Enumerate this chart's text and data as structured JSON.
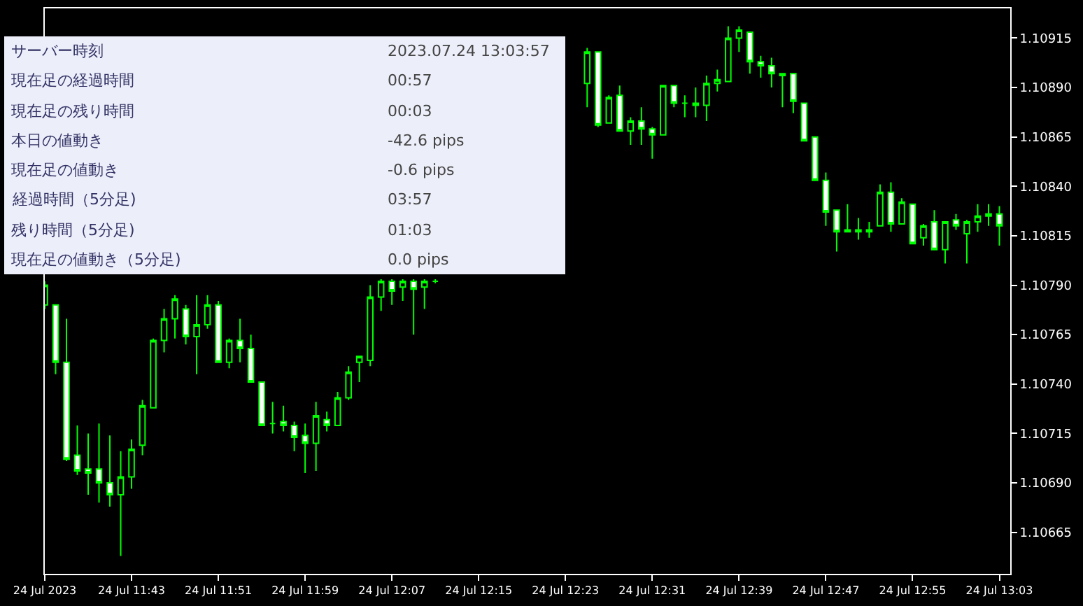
{
  "chart_data": [
    {
      "type": "candlestick",
      "color": "#00ff00",
      "x": [
        "2023-07-24T11:35",
        "2023-07-24T11:36",
        "2023-07-24T11:37",
        "2023-07-24T11:38",
        "2023-07-24T11:39",
        "2023-07-24T11:40",
        "2023-07-24T11:41",
        "2023-07-24T11:42",
        "2023-07-24T11:43",
        "2023-07-24T11:44",
        "2023-07-24T11:45",
        "2023-07-24T11:46",
        "2023-07-24T11:47",
        "2023-07-24T11:48",
        "2023-07-24T11:49",
        "2023-07-24T11:50",
        "2023-07-24T11:51",
        "2023-07-24T11:52",
        "2023-07-24T11:53",
        "2023-07-24T11:54",
        "2023-07-24T11:55",
        "2023-07-24T11:56",
        "2023-07-24T11:57",
        "2023-07-24T11:58",
        "2023-07-24T11:59",
        "2023-07-24T12:00",
        "2023-07-24T12:01",
        "2023-07-24T12:02",
        "2023-07-24T12:03",
        "2023-07-24T12:04",
        "2023-07-24T12:05",
        "2023-07-24T12:06",
        "2023-07-24T12:07",
        "2023-07-24T12:08",
        "2023-07-24T12:09",
        "2023-07-24T12:10",
        "2023-07-24T12:11",
        "2023-07-24T12:25",
        "2023-07-24T12:26",
        "2023-07-24T12:27",
        "2023-07-24T12:28",
        "2023-07-24T12:29",
        "2023-07-24T12:30",
        "2023-07-24T12:31",
        "2023-07-24T12:32",
        "2023-07-24T12:33",
        "2023-07-24T12:34",
        "2023-07-24T12:35",
        "2023-07-24T12:36",
        "2023-07-24T12:37",
        "2023-07-24T12:38",
        "2023-07-24T12:39",
        "2023-07-24T12:40",
        "2023-07-24T12:41",
        "2023-07-24T12:42",
        "2023-07-24T12:43",
        "2023-07-24T12:44",
        "2023-07-24T12:45",
        "2023-07-24T12:46",
        "2023-07-24T12:47",
        "2023-07-24T12:48",
        "2023-07-24T12:49",
        "2023-07-24T12:50",
        "2023-07-24T12:51",
        "2023-07-24T12:52",
        "2023-07-24T12:53",
        "2023-07-24T12:54",
        "2023-07-24T12:55",
        "2023-07-24T12:56",
        "2023-07-24T12:57",
        "2023-07-24T12:58",
        "2023-07-24T12:59",
        "2023-07-24T13:00",
        "2023-07-24T13:01",
        "2023-07-24T13:02",
        "2023-07-24T13:03"
      ],
      "ohlc": [
        [
          1.1078,
          1.10792,
          1.10778,
          1.1079
        ],
        [
          1.1078,
          1.1078,
          1.10745,
          1.10751
        ],
        [
          1.10751,
          1.10773,
          1.10701,
          1.10702
        ],
        [
          1.10704,
          1.10719,
          1.10694,
          1.10696
        ],
        [
          1.10697,
          1.10715,
          1.10684,
          1.10695
        ],
        [
          1.10697,
          1.1072,
          1.1068,
          1.1069
        ],
        [
          1.1069,
          1.10714,
          1.10678,
          1.10684
        ],
        [
          1.10684,
          1.10706,
          1.10653,
          1.10693
        ],
        [
          1.10693,
          1.10712,
          1.10687,
          1.10707
        ],
        [
          1.10709,
          1.10732,
          1.10704,
          1.10729
        ],
        [
          1.10728,
          1.10763,
          1.10728,
          1.10762
        ],
        [
          1.10762,
          1.10778,
          1.10756,
          1.10773
        ],
        [
          1.10773,
          1.10785,
          1.10763,
          1.10783
        ],
        [
          1.10778,
          1.1078,
          1.1076,
          1.10764
        ],
        [
          1.10764,
          1.10785,
          1.10745,
          1.1077
        ],
        [
          1.1077,
          1.10785,
          1.10768,
          1.1078
        ],
        [
          1.1078,
          1.10782,
          1.10751,
          1.10751
        ],
        [
          1.10751,
          1.10763,
          1.10748,
          1.10762
        ],
        [
          1.10762,
          1.10773,
          1.10751,
          1.10758
        ],
        [
          1.10758,
          1.10765,
          1.10741,
          1.10741
        ],
        [
          1.10741,
          1.10741,
          1.10719,
          1.10719
        ],
        [
          1.1072,
          1.10731,
          1.10715,
          1.1072
        ],
        [
          1.10721,
          1.10729,
          1.10716,
          1.10719
        ],
        [
          1.10719,
          1.10721,
          1.10706,
          1.10713
        ],
        [
          1.10714,
          1.1072,
          1.10695,
          1.1071
        ],
        [
          1.1071,
          1.10731,
          1.10696,
          1.10724
        ],
        [
          1.10722,
          1.10726,
          1.10716,
          1.10719
        ],
        [
          1.10719,
          1.10736,
          1.10719,
          1.10733
        ],
        [
          1.10733,
          1.10749,
          1.10732,
          1.10746
        ],
        [
          1.10751,
          1.10754,
          1.10741,
          1.10754
        ],
        [
          1.10752,
          1.1079,
          1.10749,
          1.10784
        ],
        [
          1.10784,
          1.10793,
          1.10777,
          1.10792
        ],
        [
          1.10792,
          1.10793,
          1.1078,
          1.10787
        ],
        [
          1.10789,
          1.10793,
          1.10782,
          1.10792
        ],
        [
          1.10792,
          1.10793,
          1.10765,
          1.10788
        ],
        [
          1.10789,
          1.10793,
          1.10778,
          1.10792
        ],
        [
          1.10792,
          1.10793,
          1.10791,
          1.10792
        ],
        [
          1.10892,
          1.1091,
          1.1088,
          1.10908
        ],
        [
          1.10908,
          1.10908,
          1.1087,
          1.10871
        ],
        [
          1.10872,
          1.10886,
          1.10872,
          1.10885
        ],
        [
          1.10886,
          1.10891,
          1.10868,
          1.10868
        ],
        [
          1.10868,
          1.10875,
          1.10861,
          1.10873
        ],
        [
          1.10873,
          1.1088,
          1.10861,
          1.10869
        ],
        [
          1.10869,
          1.1087,
          1.10854,
          1.10866
        ],
        [
          1.10866,
          1.10891,
          1.10866,
          1.10891
        ],
        [
          1.10891,
          1.10891,
          1.1088,
          1.10882
        ],
        [
          1.10882,
          1.10886,
          1.10875,
          1.10882
        ],
        [
          1.10882,
          1.1089,
          1.10875,
          1.10881
        ],
        [
          1.10881,
          1.10896,
          1.10873,
          1.10892
        ],
        [
          1.10892,
          1.10899,
          1.10888,
          1.10894
        ],
        [
          1.10893,
          1.10921,
          1.10893,
          1.10915
        ],
        [
          1.10915,
          1.10921,
          1.10908,
          1.10919
        ],
        [
          1.10918,
          1.10918,
          1.10897,
          1.10903
        ],
        [
          1.10903,
          1.10906,
          1.10895,
          1.10901
        ],
        [
          1.10901,
          1.10905,
          1.1089,
          1.10897
        ],
        [
          1.10897,
          1.10897,
          1.1088,
          1.10896
        ],
        [
          1.10897,
          1.10897,
          1.10877,
          1.10883
        ],
        [
          1.10882,
          1.10882,
          1.10863,
          1.10863
        ],
        [
          1.10865,
          1.10865,
          1.10843,
          1.10843
        ],
        [
          1.10843,
          1.10847,
          1.1082,
          1.10827
        ],
        [
          1.10828,
          1.10828,
          1.10807,
          1.10817
        ],
        [
          1.10818,
          1.10831,
          1.10817,
          1.10817
        ],
        [
          1.10818,
          1.10824,
          1.10813,
          1.10817
        ],
        [
          1.10818,
          1.10822,
          1.10814,
          1.10817
        ],
        [
          1.1082,
          1.10841,
          1.1082,
          1.10837
        ],
        [
          1.10837,
          1.10842,
          1.10817,
          1.10821
        ],
        [
          1.10821,
          1.10834,
          1.10821,
          1.10832
        ],
        [
          1.10831,
          1.10831,
          1.10811,
          1.10811
        ],
        [
          1.10814,
          1.10821,
          1.1081,
          1.1082
        ],
        [
          1.10822,
          1.10828,
          1.10808,
          1.10808
        ],
        [
          1.10808,
          1.10822,
          1.10801,
          1.10822
        ],
        [
          1.10823,
          1.10826,
          1.10818,
          1.1082
        ],
        [
          1.10816,
          1.10823,
          1.10801,
          1.10822
        ],
        [
          1.10822,
          1.10831,
          1.10817,
          1.10825
        ],
        [
          1.10825,
          1.10831,
          1.1082,
          1.10826
        ],
        [
          1.10826,
          1.1083,
          1.1081,
          1.1082
        ]
      ],
      "xlim": [
        "2023-07-24T11:35",
        "2023-07-24T13:04"
      ],
      "xticks": [
        {
          "value": "2023-07-24T11:35",
          "label": "24 Jul 2023"
        },
        {
          "value": "2023-07-24T11:43",
          "label": "24 Jul 11:43"
        },
        {
          "value": "2023-07-24T11:51",
          "label": "24 Jul 11:51"
        },
        {
          "value": "2023-07-24T11:59",
          "label": "24 Jul 11:59"
        },
        {
          "value": "2023-07-24T12:07",
          "label": "24 Jul 12:07"
        },
        {
          "value": "2023-07-24T12:15",
          "label": "24 Jul 12:15"
        },
        {
          "value": "2023-07-24T12:23",
          "label": "24 Jul 12:23"
        },
        {
          "value": "2023-07-24T12:31",
          "label": "24 Jul 12:31"
        },
        {
          "value": "2023-07-24T12:39",
          "label": "24 Jul 12:39"
        },
        {
          "value": "2023-07-24T12:47",
          "label": "24 Jul 12:47"
        },
        {
          "value": "2023-07-24T12:55",
          "label": "24 Jul 12:55"
        },
        {
          "value": "2023-07-24T13:03",
          "label": "24 Jul 13:03"
        }
      ],
      "ylim": [
        1.10644,
        1.1093
      ],
      "yticks": [
        {
          "value": 1.10665,
          "label": "1.10665"
        },
        {
          "value": 1.1069,
          "label": "1.10690"
        },
        {
          "value": 1.10715,
          "label": "1.10715"
        },
        {
          "value": 1.1074,
          "label": "1.10740"
        },
        {
          "value": 1.10765,
          "label": "1.10765"
        },
        {
          "value": 1.1079,
          "label": "1.10790"
        },
        {
          "value": 1.10815,
          "label": "1.10815"
        },
        {
          "value": 1.1084,
          "label": "1.10840"
        },
        {
          "value": 1.10865,
          "label": "1.10865"
        },
        {
          "value": 1.1089,
          "label": "1.10890"
        },
        {
          "value": 1.10915,
          "label": "1.10915"
        }
      ]
    },
    {
      "type": "other",
      "categories": [
        "サーバー時刻",
        "現在足の経過時間",
        "現在足の残り時間",
        "本日の値動き",
        "現在足の値動き",
        "経過時間（5分足)",
        "残り時間（5分足)",
        "現在足の値動き（5分足)"
      ],
      "value_labels": [
        "2023.07.24 13:03:57",
        "00:57",
        "00:03",
        "-42.6 pips",
        "-0.6 pips",
        "03:57",
        "01:03",
        "0.0 pips"
      ]
    }
  ]
}
